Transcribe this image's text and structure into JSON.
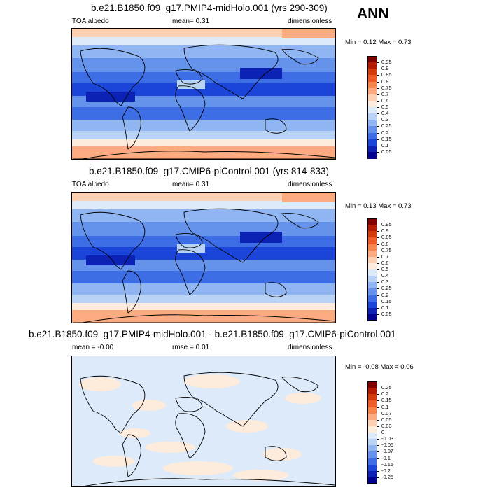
{
  "season": "ANN",
  "panels": [
    {
      "title": "b.e21.B1850.f09_g17.PMIP4-midHolo.001 (yrs 290-309)",
      "left_label": "TOA albedo",
      "center_label": "mean=   0.31",
      "right_label": "dimensionless",
      "minmax": "Min =  0.12 Max =  0.73",
      "levels": [
        "0.95",
        "0.9",
        "0.85",
        "0.8",
        "0.75",
        "0.7",
        "0.6",
        "0.5",
        "0.4",
        "0.3",
        "0.25",
        "0.2",
        "0.15",
        "0.1",
        "0.05"
      ],
      "colors": [
        "#800000",
        "#b31a00",
        "#d63b0d",
        "#ee5a28",
        "#f6844d",
        "#fbab7f",
        "#fcd0b0",
        "#fdebdc",
        "#dceaf9",
        "#b8d3f6",
        "#8fb6f2",
        "#6593ec",
        "#3d6ee5",
        "#1a45d8",
        "#0c22b5",
        "#00008f"
      ]
    },
    {
      "title": "b.e21.B1850.f09_g17.CMIP6-piControl.001 (yrs 814-833)",
      "left_label": "TOA albedo",
      "center_label": "mean=   0.31",
      "right_label": "dimensionless",
      "minmax": "Min =  0.13 Max =  0.73",
      "levels": [
        "0.95",
        "0.9",
        "0.85",
        "0.8",
        "0.75",
        "0.7",
        "0.6",
        "0.5",
        "0.4",
        "0.3",
        "0.25",
        "0.2",
        "0.15",
        "0.1",
        "0.05"
      ],
      "colors": [
        "#800000",
        "#b31a00",
        "#d63b0d",
        "#ee5a28",
        "#f6844d",
        "#fbab7f",
        "#fcd0b0",
        "#fdebdc",
        "#dceaf9",
        "#b8d3f6",
        "#8fb6f2",
        "#6593ec",
        "#3d6ee5",
        "#1a45d8",
        "#0c22b5",
        "#00008f"
      ]
    },
    {
      "title": "b.e21.B1850.f09_g17.PMIP4-midHolo.001 - b.e21.B1850.f09_g17.CMIP6-piControl.001",
      "left_label": "mean =  -0.00",
      "center_label": "rmse =  0.01",
      "right_label": "dimensionless",
      "minmax": "Min = -0.08 Max =  0.06",
      "levels": [
        "0.25",
        "0.2",
        "0.15",
        "0.1",
        "0.07",
        "0.05",
        "0.03",
        "0",
        "-0.03",
        "-0.05",
        "-0.07",
        "-0.1",
        "-0.15",
        "-0.2",
        "-0.25"
      ],
      "colors": [
        "#800000",
        "#b31a00",
        "#d63b0d",
        "#ee5a28",
        "#f6844d",
        "#fbab7f",
        "#fcd0b0",
        "#fdebdc",
        "#dceaf9",
        "#b8d3f6",
        "#8fb6f2",
        "#6593ec",
        "#3d6ee5",
        "#1a45d8",
        "#0c22b5",
        "#00008f"
      ]
    }
  ],
  "chart_data": [
    {
      "type": "heatmap",
      "title": "b.e21.B1850.f09_g17.PMIP4-midHolo.001 (yrs 290-309)",
      "variable": "TOA albedo",
      "units": "dimensionless",
      "mean": 0.31,
      "min": 0.12,
      "max": 0.73,
      "contour_levels": [
        0.05,
        0.1,
        0.15,
        0.2,
        0.25,
        0.3,
        0.4,
        0.5,
        0.6,
        0.7,
        0.75,
        0.8,
        0.85,
        0.9,
        0.95
      ]
    },
    {
      "type": "heatmap",
      "title": "b.e21.B1850.f09_g17.CMIP6-piControl.001 (yrs 814-833)",
      "variable": "TOA albedo",
      "units": "dimensionless",
      "mean": 0.31,
      "min": 0.13,
      "max": 0.73,
      "contour_levels": [
        0.05,
        0.1,
        0.15,
        0.2,
        0.25,
        0.3,
        0.4,
        0.5,
        0.6,
        0.7,
        0.75,
        0.8,
        0.85,
        0.9,
        0.95
      ]
    },
    {
      "type": "heatmap",
      "title": "b.e21.B1850.f09_g17.PMIP4-midHolo.001 - b.e21.B1850.f09_g17.CMIP6-piControl.001",
      "units": "dimensionless",
      "mean": -0.0,
      "rmse": 0.01,
      "min": -0.08,
      "max": 0.06,
      "contour_levels": [
        -0.25,
        -0.2,
        -0.15,
        -0.1,
        -0.07,
        -0.05,
        -0.03,
        0,
        0.03,
        0.05,
        0.07,
        0.1,
        0.15,
        0.2,
        0.25
      ]
    }
  ]
}
